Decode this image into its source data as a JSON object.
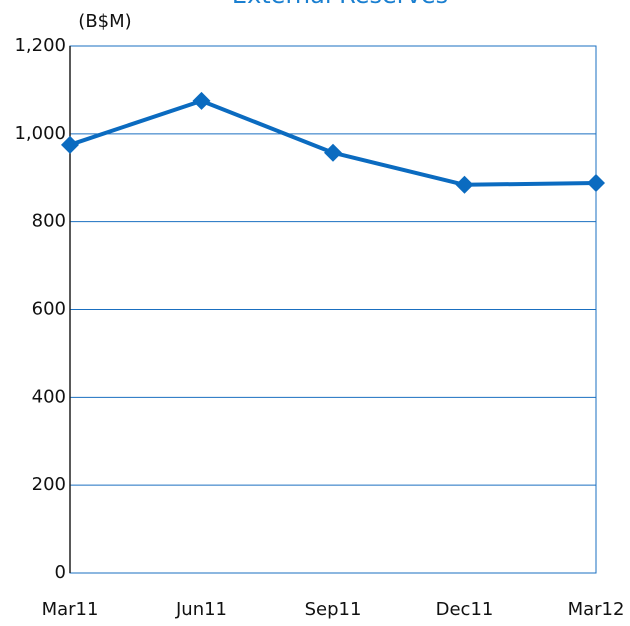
{
  "chart_data": {
    "type": "line",
    "title": "External Reserves",
    "y_label": "(B$M)",
    "categories": [
      "Mar11",
      "Jun11",
      "Sep11",
      "Dec11",
      "Mar12"
    ],
    "series": [
      {
        "name": "External Reserves",
        "color": "#0b6bc0",
        "values": [
          975,
          1075,
          957,
          884,
          888
        ]
      }
    ],
    "ylim": [
      0,
      1200
    ],
    "yticks": [
      0,
      200,
      400,
      600,
      800,
      {
        "value": 1000,
        "label": "1,000"
      },
      {
        "value": 1200,
        "label": "1,200"
      }
    ],
    "grid": true
  }
}
